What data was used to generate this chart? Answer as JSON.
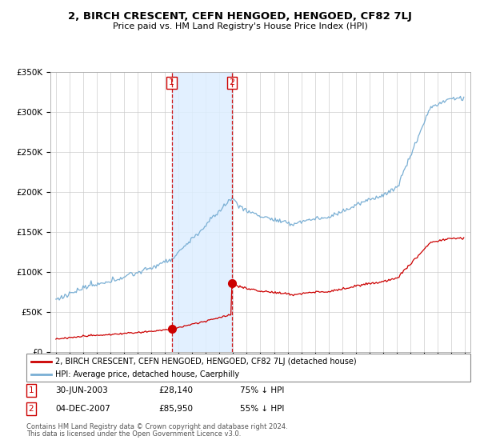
{
  "title": "2, BIRCH CRESCENT, CEFN HENGOED, HENGOED, CF82 7LJ",
  "subtitle": "Price paid vs. HM Land Registry's House Price Index (HPI)",
  "legend_line1": "2, BIRCH CRESCENT, CEFN HENGOED, HENGOED, CF82 7LJ (detached house)",
  "legend_line2": "HPI: Average price, detached house, Caerphilly",
  "transaction1_date": "30-JUN-2003",
  "transaction1_price": 28140,
  "transaction1_label": "1",
  "transaction1_pct": "75% ↓ HPI",
  "transaction1_year": 2003.5,
  "transaction2_date": "04-DEC-2007",
  "transaction2_price": 85950,
  "transaction2_label": "2",
  "transaction2_pct": "55% ↓ HPI",
  "transaction2_year": 2007.917,
  "footer1": "Contains HM Land Registry data © Crown copyright and database right 2024.",
  "footer2": "This data is licensed under the Open Government Licence v3.0.",
  "line_color_property": "#cc0000",
  "line_color_hpi": "#7aafd4",
  "shading_color": "#ddeeff",
  "ylim": [
    0,
    350000
  ],
  "yticks": [
    0,
    50000,
    100000,
    150000,
    200000,
    250000,
    300000,
    350000
  ],
  "ytick_labels": [
    "£0",
    "£50K",
    "£100K",
    "£150K",
    "£200K",
    "£250K",
    "£300K",
    "£350K"
  ]
}
